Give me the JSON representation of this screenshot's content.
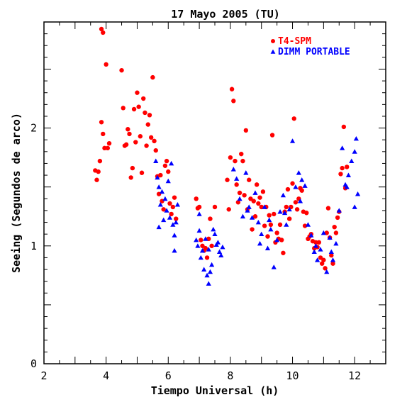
{
  "chart_data": {
    "type": "scatter",
    "title": "17 Mayo 2005 (TU)",
    "xlabel": "Tiempo Universal (h)",
    "ylabel": "Seeing (Segundos de arco)",
    "xlim": [
      2,
      13
    ],
    "ylim": [
      0,
      2.9
    ],
    "xticks": [
      2,
      4,
      6,
      8,
      10,
      12
    ],
    "yticks": [
      0,
      1,
      2
    ],
    "grid": false,
    "legend_position": "top-right",
    "series": [
      {
        "name": "T4-SPM",
        "color": "#ff0000",
        "marker": "circle",
        "points": [
          [
            3.65,
            1.64
          ],
          [
            3.7,
            1.56
          ],
          [
            3.75,
            1.63
          ],
          [
            3.8,
            1.72
          ],
          [
            3.85,
            2.05
          ],
          [
            3.9,
            1.95
          ],
          [
            3.95,
            1.83
          ],
          [
            3.85,
            2.84
          ],
          [
            3.9,
            2.81
          ],
          [
            4.0,
            2.54
          ],
          [
            4.05,
            1.83
          ],
          [
            4.1,
            1.87
          ],
          [
            4.5,
            2.49
          ],
          [
            4.55,
            2.17
          ],
          [
            4.6,
            1.85
          ],
          [
            4.65,
            1.86
          ],
          [
            4.7,
            1.99
          ],
          [
            4.75,
            1.95
          ],
          [
            4.8,
            1.58
          ],
          [
            4.85,
            1.66
          ],
          [
            4.9,
            2.16
          ],
          [
            4.95,
            1.88
          ],
          [
            5.0,
            2.3
          ],
          [
            5.05,
            2.18
          ],
          [
            5.1,
            1.93
          ],
          [
            5.15,
            1.62
          ],
          [
            5.2,
            2.25
          ],
          [
            5.25,
            2.13
          ],
          [
            5.3,
            1.85
          ],
          [
            5.35,
            2.03
          ],
          [
            5.4,
            2.11
          ],
          [
            5.45,
            1.92
          ],
          [
            5.5,
            2.43
          ],
          [
            5.55,
            1.89
          ],
          [
            5.6,
            1.81
          ],
          [
            5.65,
            1.59
          ],
          [
            5.7,
            1.44
          ],
          [
            5.75,
            1.6
          ],
          [
            5.8,
            1.38
          ],
          [
            5.85,
            1.31
          ],
          [
            5.9,
            1.68
          ],
          [
            5.95,
            1.72
          ],
          [
            6.0,
            1.63
          ],
          [
            6.05,
            1.36
          ],
          [
            6.1,
            1.27
          ],
          [
            6.15,
            1.33
          ],
          [
            6.2,
            1.41
          ],
          [
            6.25,
            1.23
          ],
          [
            6.9,
            1.4
          ],
          [
            6.95,
            1.32
          ],
          [
            7.0,
            1.33
          ],
          [
            7.05,
            1.05
          ],
          [
            7.1,
            1.0
          ],
          [
            7.15,
            0.96
          ],
          [
            7.2,
            0.98
          ],
          [
            7.25,
            0.9
          ],
          [
            7.3,
            1.06
          ],
          [
            7.35,
            1.23
          ],
          [
            7.4,
            1.0
          ],
          [
            7.5,
            1.33
          ],
          [
            7.9,
            1.56
          ],
          [
            7.95,
            1.31
          ],
          [
            8.0,
            1.75
          ],
          [
            8.05,
            2.33
          ],
          [
            8.1,
            2.23
          ],
          [
            8.15,
            1.72
          ],
          [
            8.2,
            1.52
          ],
          [
            8.25,
            1.37
          ],
          [
            8.3,
            1.45
          ],
          [
            8.35,
            1.78
          ],
          [
            8.4,
            1.72
          ],
          [
            8.45,
            1.43
          ],
          [
            8.5,
            1.98
          ],
          [
            8.55,
            1.31
          ],
          [
            8.6,
            1.56
          ],
          [
            8.65,
            1.4
          ],
          [
            8.7,
            1.14
          ],
          [
            8.75,
            1.38
          ],
          [
            8.8,
            1.25
          ],
          [
            8.85,
            1.52
          ],
          [
            8.9,
            1.36
          ],
          [
            8.95,
            1.41
          ],
          [
            9.0,
            1.33
          ],
          [
            9.05,
            1.46
          ],
          [
            9.1,
            1.17
          ],
          [
            9.15,
            1.33
          ],
          [
            9.2,
            1.08
          ],
          [
            9.25,
            1.26
          ],
          [
            9.3,
            1.18
          ],
          [
            9.35,
            1.94
          ],
          [
            9.4,
            1.27
          ],
          [
            9.45,
            1.03
          ],
          [
            9.5,
            1.11
          ],
          [
            9.55,
            1.06
          ],
          [
            9.6,
            1.18
          ],
          [
            9.65,
            1.05
          ],
          [
            9.7,
            0.94
          ],
          [
            9.75,
            1.29
          ],
          [
            9.8,
            1.33
          ],
          [
            9.85,
            1.48
          ],
          [
            9.9,
            1.23
          ],
          [
            9.95,
            1.33
          ],
          [
            10.0,
            1.53
          ],
          [
            10.05,
            2.08
          ],
          [
            10.1,
            1.37
          ],
          [
            10.15,
            1.31
          ],
          [
            10.2,
            1.4
          ],
          [
            10.25,
            1.49
          ],
          [
            10.3,
            1.47
          ],
          [
            10.35,
            1.29
          ],
          [
            10.4,
            1.17
          ],
          [
            10.45,
            1.28
          ],
          [
            10.5,
            1.06
          ],
          [
            10.55,
            1.08
          ],
          [
            10.6,
            1.1
          ],
          [
            10.65,
            1.04
          ],
          [
            10.7,
            0.98
          ],
          [
            10.75,
            1.03
          ],
          [
            10.8,
            0.99
          ],
          [
            10.85,
            1.03
          ],
          [
            10.9,
            0.9
          ],
          [
            10.95,
            0.85
          ],
          [
            11.0,
            0.88
          ],
          [
            11.05,
            0.81
          ],
          [
            11.1,
            1.11
          ],
          [
            11.15,
            1.32
          ],
          [
            11.2,
            1.07
          ],
          [
            11.25,
            0.92
          ],
          [
            11.3,
            0.85
          ],
          [
            11.35,
            1.16
          ],
          [
            11.4,
            1.11
          ],
          [
            11.45,
            1.24
          ],
          [
            11.5,
            1.29
          ],
          [
            11.55,
            1.61
          ],
          [
            11.6,
            1.66
          ],
          [
            11.65,
            2.01
          ],
          [
            11.7,
            1.49
          ],
          [
            11.75,
            1.67
          ]
        ]
      },
      {
        "name": "DIMM PORTABLE",
        "color": "#0000ff",
        "marker": "triangle",
        "points": [
          [
            5.6,
            1.72
          ],
          [
            5.65,
            1.58
          ],
          [
            5.7,
            1.5
          ],
          [
            5.75,
            1.35
          ],
          [
            5.8,
            1.46
          ],
          [
            5.85,
            1.22
          ],
          [
            5.9,
            1.4
          ],
          [
            5.95,
            1.3
          ],
          [
            6.0,
            1.55
          ],
          [
            6.05,
            1.24
          ],
          [
            6.1,
            1.7
          ],
          [
            6.15,
            1.18
          ],
          [
            6.2,
            1.09
          ],
          [
            6.25,
            1.2
          ],
          [
            6.3,
            1.35
          ],
          [
            6.2,
            0.96
          ],
          [
            5.7,
            1.16
          ],
          [
            6.9,
            1.05
          ],
          [
            6.95,
            1.0
          ],
          [
            7.0,
            1.13
          ],
          [
            7.05,
            0.9
          ],
          [
            7.1,
            0.96
          ],
          [
            7.15,
            0.8
          ],
          [
            7.2,
            1.06
          ],
          [
            7.25,
            0.75
          ],
          [
            7.3,
            0.68
          ],
          [
            7.35,
            0.78
          ],
          [
            7.4,
            0.84
          ],
          [
            7.45,
            1.14
          ],
          [
            7.5,
            1.1
          ],
          [
            7.55,
            1.01
          ],
          [
            7.6,
            1.03
          ],
          [
            7.65,
            0.95
          ],
          [
            7.7,
            0.92
          ],
          [
            7.75,
            0.99
          ],
          [
            7.0,
            1.27
          ],
          [
            7.3,
            0.97
          ],
          [
            8.1,
            1.65
          ],
          [
            8.2,
            1.57
          ],
          [
            8.3,
            1.4
          ],
          [
            8.4,
            1.25
          ],
          [
            8.5,
            1.62
          ],
          [
            8.6,
            1.33
          ],
          [
            8.7,
            1.24
          ],
          [
            8.8,
            1.45
          ],
          [
            8.9,
            1.2
          ],
          [
            9.0,
            1.1
          ],
          [
            9.1,
            1.33
          ],
          [
            9.2,
            0.98
          ],
          [
            9.3,
            1.14
          ],
          [
            9.4,
            0.82
          ],
          [
            9.5,
            1.05
          ],
          [
            9.6,
            1.29
          ],
          [
            9.7,
            1.43
          ],
          [
            9.8,
            1.18
          ],
          [
            9.9,
            1.31
          ],
          [
            10.0,
            1.89
          ],
          [
            10.1,
            1.5
          ],
          [
            10.2,
            1.62
          ],
          [
            10.3,
            1.56
          ],
          [
            10.4,
            1.51
          ],
          [
            10.5,
            1.18
          ],
          [
            10.6,
            1.09
          ],
          [
            10.7,
            0.95
          ],
          [
            10.8,
            0.88
          ],
          [
            10.9,
            0.97
          ],
          [
            11.0,
            1.11
          ],
          [
            11.1,
            0.78
          ],
          [
            11.2,
            1.07
          ],
          [
            11.3,
            0.88
          ],
          [
            11.4,
            1.02
          ],
          [
            11.5,
            1.3
          ],
          [
            11.6,
            1.83
          ],
          [
            11.7,
            1.52
          ],
          [
            11.8,
            1.6
          ],
          [
            11.9,
            1.72
          ],
          [
            12.0,
            1.8
          ],
          [
            12.05,
            1.91
          ],
          [
            12.1,
            1.44
          ],
          [
            8.55,
            1.3
          ],
          [
            8.95,
            1.02
          ],
          [
            9.25,
            1.22
          ],
          [
            9.75,
            1.28
          ],
          [
            10.25,
            1.38
          ],
          [
            10.75,
            1.0
          ],
          [
            11.25,
            0.95
          ],
          [
            11.75,
            1.5
          ],
          [
            12.0,
            1.33
          ]
        ]
      }
    ]
  }
}
